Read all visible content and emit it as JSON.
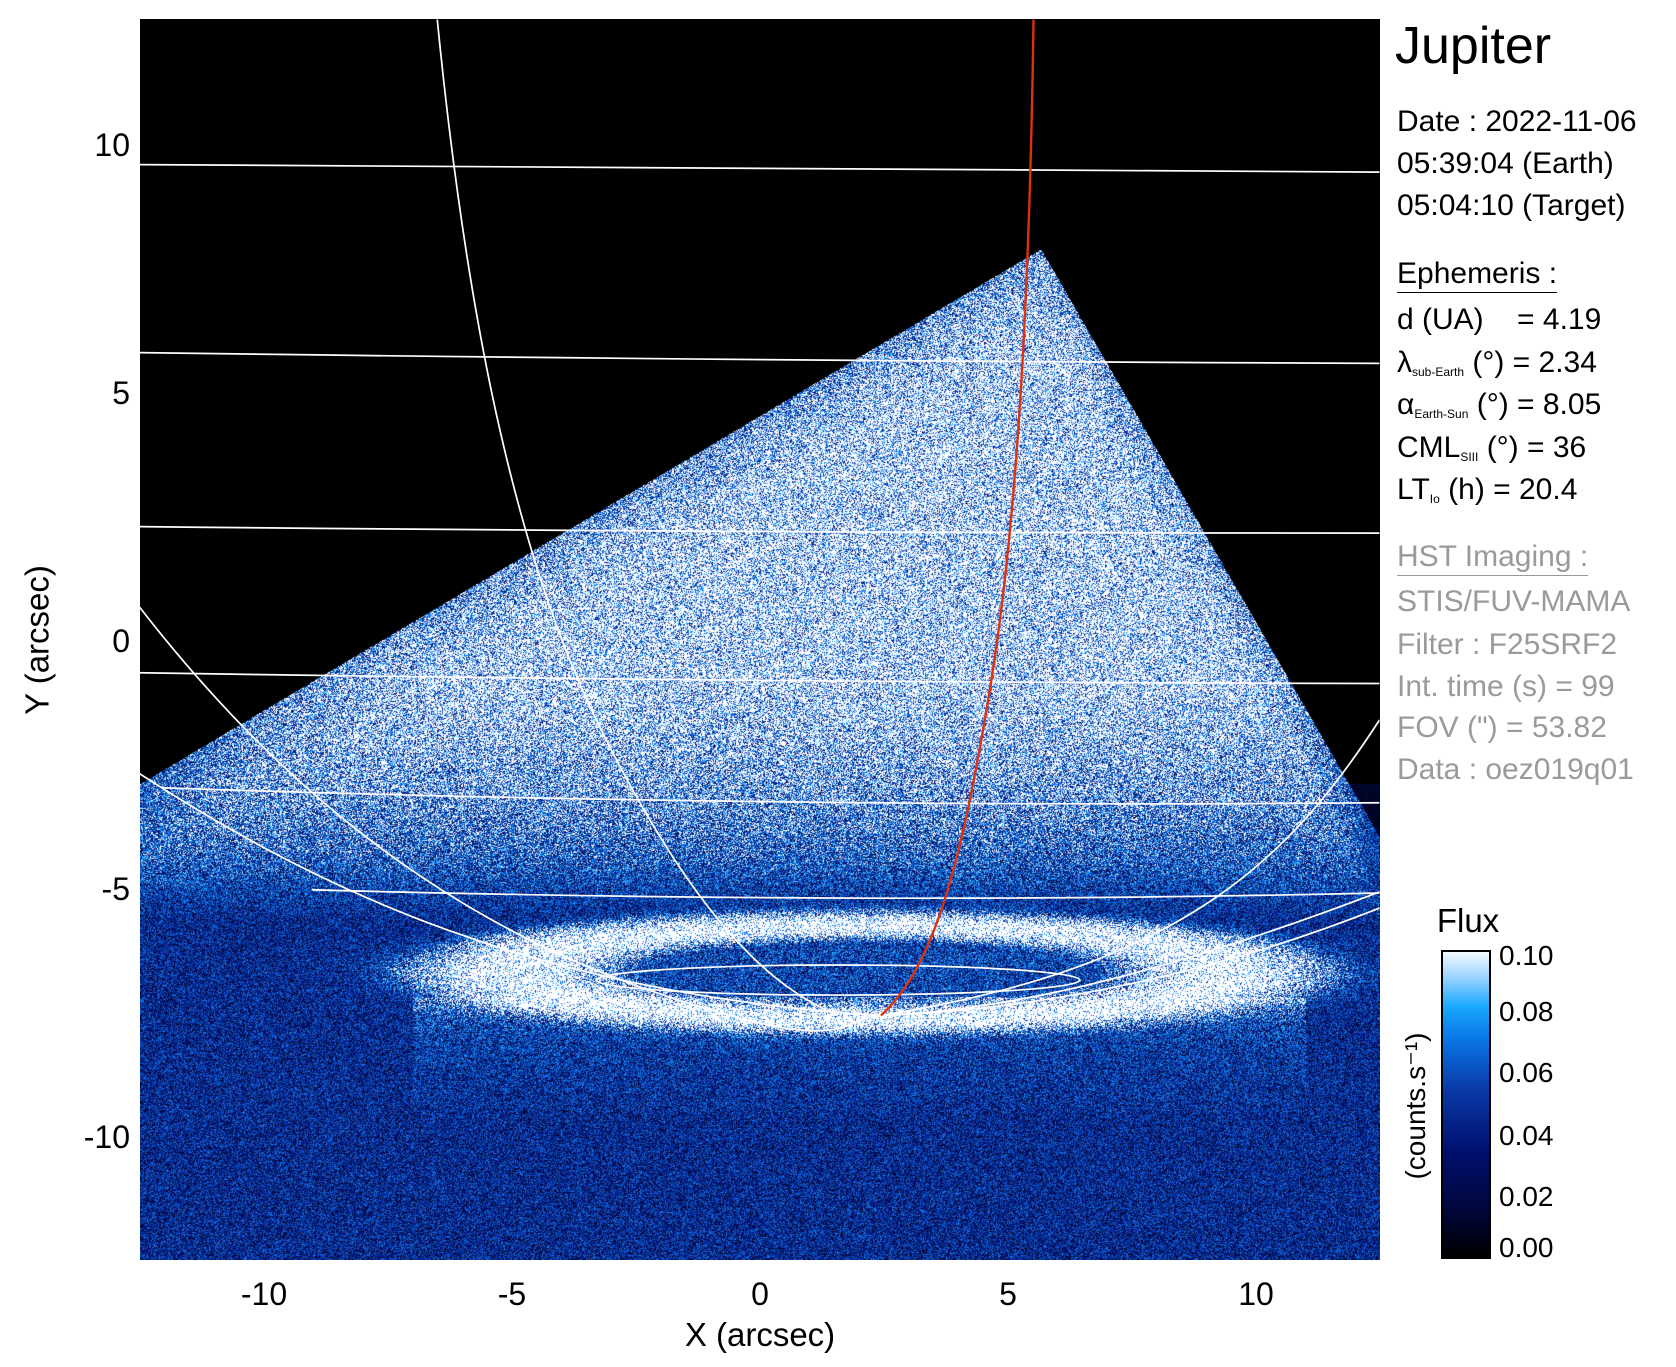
{
  "chart_data": {
    "type": "heatmap",
    "title": "Jupiter",
    "xlabel": "X (arcsec)",
    "ylabel": "Y (arcsec)",
    "xlim": [
      -12.5,
      12.5
    ],
    "ylim": [
      -12.5,
      12.5
    ],
    "xticks": [
      "-10",
      "-5",
      "0",
      "5",
      "10"
    ],
    "xtick_values": [
      -10,
      -5,
      0,
      5,
      10
    ],
    "yticks": [
      "10",
      "5",
      "0",
      "-5",
      "-10"
    ],
    "ytick_values": [
      10,
      5,
      0,
      -5,
      -10
    ],
    "grid": true,
    "colorbar": {
      "title": "Flux",
      "label": "(counts.s⁻¹)",
      "range": [
        0.0,
        0.1
      ],
      "ticks": [
        "0.10",
        "0.08",
        "0.06",
        "0.04",
        "0.02",
        "0.00"
      ],
      "tick_values": [
        0.1,
        0.08,
        0.06,
        0.04,
        0.02,
        0.0
      ],
      "placement": "right"
    },
    "colors": {
      "footprint_line": "#e03010",
      "grid": "#ffffff"
    }
  },
  "info": {
    "title": "Jupiter",
    "date": "Date : 2022-11-06",
    "time_earth": "05:39:04 (Earth)",
    "time_target": "05:04:10 (Target)",
    "ephemeris_header": "Ephemeris :",
    "ephemeris": [
      {
        "sym": "d (UA)",
        "sub": "",
        "rest": "    = 4.19"
      },
      {
        "sym": "λ",
        "sub": "sub-Earth",
        "rest": " (°) = 2.34"
      },
      {
        "sym": "α",
        "sub": "Earth-Sun",
        "rest": " (°) = 8.05"
      },
      {
        "sym": "CML",
        "sub": "SIII",
        "rest": " (°) = 36"
      },
      {
        "sym": "LT",
        "sub": "Io",
        "rest": " (h) = 20.4"
      }
    ],
    "hst_header": "HST Imaging :",
    "hst": [
      "STIS/FUV-MAMA",
      "Filter : F25SRF2",
      "Int. time (s) = 99",
      "FOV (\") = 53.82",
      "Data : oez019q01"
    ]
  }
}
